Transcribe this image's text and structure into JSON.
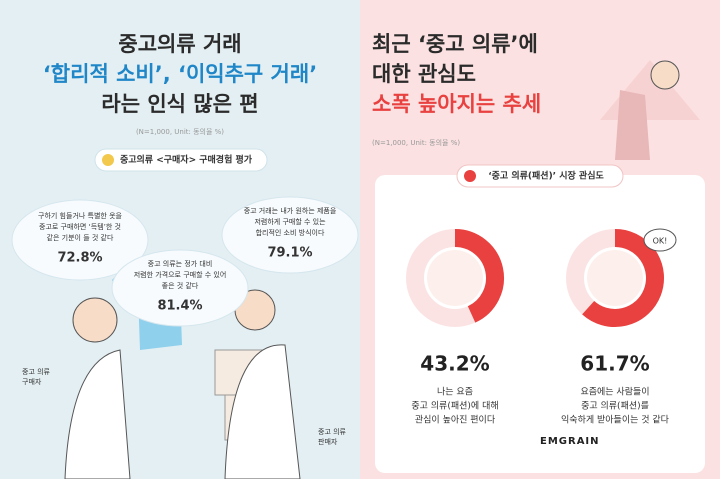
{
  "left": {
    "title": [
      "중고의류 거래",
      "‘합리적 소비’, ‘이익추구 거래’",
      "라는 인식 많은 편"
    ],
    "note": "(N=1,000, Unit: 동의율 %)",
    "badge": "중고의류 <구매자> 구매경험 평가",
    "bubbles": [
      {
        "lines": [
          "구하기 힘들거나 특별한 옷을",
          "중고로 구매하면 ‘득템’한 것",
          "같은 기분이 들 것 같다"
        ],
        "value": "72.8%"
      },
      {
        "lines": [
          "중고 의류는 정가 대비",
          "저렴한 가격으로 구매할 수 있어",
          "좋은 것 같다"
        ],
        "value": "81.4%"
      },
      {
        "lines": [
          "중고 거래는 내가 원하는 제품을",
          "저렴하게 구매할 수 있는",
          "합리적인 소비 방식이다"
        ],
        "value": "79.1%"
      }
    ],
    "labels": [
      [
        "중고 의류",
        "구매자"
      ],
      [
        "중고 의류",
        "판매자"
      ]
    ]
  },
  "right": {
    "title": [
      "최근 ‘중고 의류’에",
      "대한 관심도",
      "소폭 높아지는 추세"
    ],
    "note": "(N=1,000, Unit: 동의율 %)",
    "badge": "‘중고 의류(패션)’ 시장 관심도",
    "stats": [
      {
        "value": 43.2,
        "label": "43.2%",
        "lines": [
          "나는 요즘",
          "중고 의류(패션)에 대해",
          "관심이 높아진 편이다"
        ]
      },
      {
        "value": 61.7,
        "label": "61.7%",
        "lines": [
          "요즘에는 사람들이",
          "중고 의류(패션)를",
          "익숙하게 받아들이는 것 같다"
        ]
      }
    ],
    "bubble_text": "OK!",
    "brand": "EMGRAIN"
  }
}
